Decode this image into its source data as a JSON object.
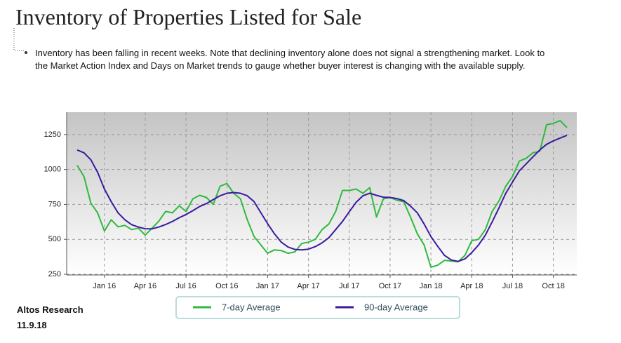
{
  "title": "Inventory of Properties Listed for Sale",
  "note": [
    "Inventory has been falling in recent weeks. Note that declining inventory alone does not signal a strengthening market. Look to",
    "the Market Action Index and Days on Market trends to gauge whether buyer interest is changing with the available supply."
  ],
  "footer": {
    "source": "Altos Research",
    "date": "11.9.18"
  },
  "chart_data": {
    "type": "line",
    "categories": [
      null,
      null,
      null,
      null,
      "Jan 16",
      null,
      null,
      null,
      null,
      null,
      "Apr 16",
      null,
      null,
      null,
      null,
      null,
      "Jul 16",
      null,
      null,
      null,
      null,
      null,
      "Oct 16",
      null,
      null,
      null,
      null,
      null,
      "Jan 17",
      null,
      null,
      null,
      null,
      null,
      "Apr 17",
      null,
      null,
      null,
      null,
      null,
      "Jul 17",
      null,
      null,
      null,
      null,
      null,
      "Oct 17",
      null,
      null,
      null,
      null,
      null,
      "Jan 18",
      null,
      null,
      null,
      null,
      null,
      "Apr 18",
      null,
      null,
      null,
      null,
      null,
      "Jul 18",
      null,
      null,
      null,
      null,
      null,
      "Oct 18",
      null,
      null
    ],
    "series": [
      {
        "name": "7-day Average",
        "color": "#2fba3e",
        "values": [
          1030,
          950,
          760,
          690,
          560,
          640,
          590,
          600,
          570,
          580,
          530,
          580,
          630,
          700,
          690,
          740,
          700,
          790,
          815,
          800,
          750,
          880,
          900,
          830,
          790,
          640,
          520,
          460,
          400,
          425,
          420,
          400,
          410,
          470,
          480,
          500,
          570,
          610,
          700,
          850,
          850,
          860,
          830,
          870,
          660,
          790,
          800,
          780,
          770,
          660,
          540,
          460,
          300,
          315,
          350,
          345,
          340,
          385,
          490,
          500,
          570,
          700,
          775,
          880,
          950,
          1060,
          1080,
          1120,
          1130,
          1320,
          1330,
          1350,
          1300
        ]
      },
      {
        "name": "90-day Average",
        "color": "#3b1aa0",
        "values": [
          1140,
          1120,
          1070,
          980,
          860,
          770,
          690,
          640,
          605,
          588,
          576,
          575,
          588,
          606,
          628,
          655,
          678,
          705,
          735,
          756,
          785,
          812,
          830,
          835,
          830,
          812,
          770,
          690,
          612,
          540,
          480,
          445,
          428,
          425,
          430,
          448,
          475,
          512,
          570,
          628,
          698,
          765,
          812,
          830,
          815,
          802,
          800,
          792,
          778,
          738,
          690,
          610,
          520,
          450,
          385,
          352,
          342,
          360,
          405,
          460,
          530,
          625,
          725,
          830,
          910,
          990,
          1040,
          1090,
          1140,
          1180,
          1205,
          1225,
          1245
        ]
      }
    ],
    "ylim": [
      245,
      1410
    ],
    "yticks": [
      250,
      500,
      750,
      1000,
      1250
    ],
    "grid": true,
    "legend": "bottom"
  }
}
